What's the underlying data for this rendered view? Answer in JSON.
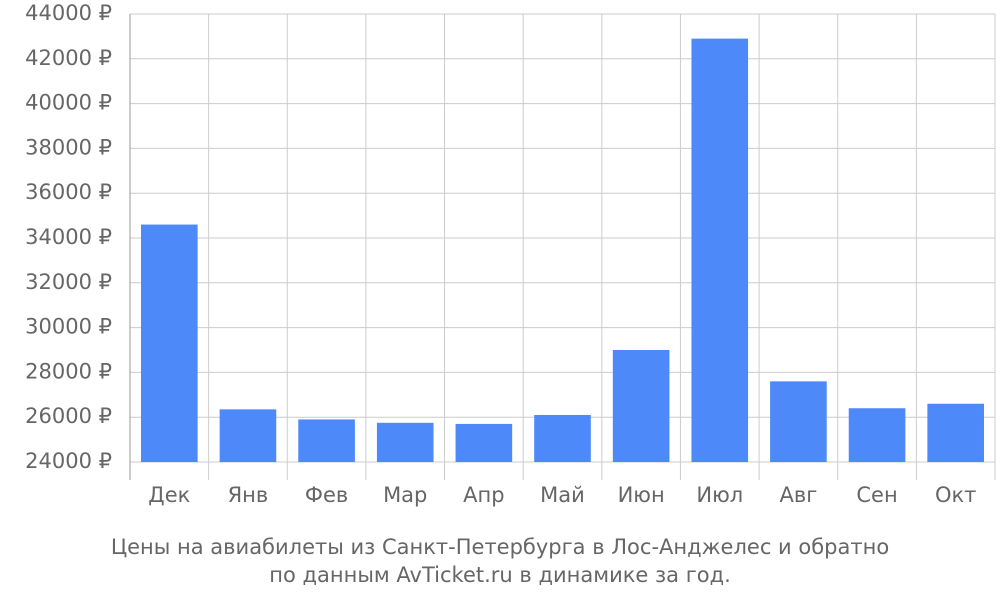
{
  "chart_data": {
    "type": "bar",
    "title": [
      "Цены на авиабилеты из Санкт-Петербурга в Лос-Анджелес и обратно",
      "по данным AvTicket.ru в динамике за год."
    ],
    "categories": [
      "Дек",
      "Янв",
      "Фев",
      "Мар",
      "Апр",
      "Май",
      "Июн",
      "Июл",
      "Авг",
      "Сен",
      "Окт"
    ],
    "values": [
      34600,
      26350,
      25900,
      25750,
      25700,
      26100,
      29000,
      42900,
      27600,
      26400,
      26600
    ],
    "color": "#4d89f9",
    "ylim": [
      24000,
      44000
    ],
    "yticks": [
      {
        "value": 24000,
        "label": "24000 ₽"
      },
      {
        "value": 26000,
        "label": "26000 ₽"
      },
      {
        "value": 28000,
        "label": "28000 ₽"
      },
      {
        "value": 30000,
        "label": "30000 ₽"
      },
      {
        "value": 32000,
        "label": "32000 ₽"
      },
      {
        "value": 34000,
        "label": "34000 ₽"
      },
      {
        "value": 36000,
        "label": "36000 ₽"
      },
      {
        "value": 38000,
        "label": "38000 ₽"
      },
      {
        "value": 40000,
        "label": "40000 ₽"
      },
      {
        "value": 42000,
        "label": "42000 ₽"
      },
      {
        "value": 44000,
        "label": "44000 ₽"
      }
    ],
    "grid": true
  }
}
